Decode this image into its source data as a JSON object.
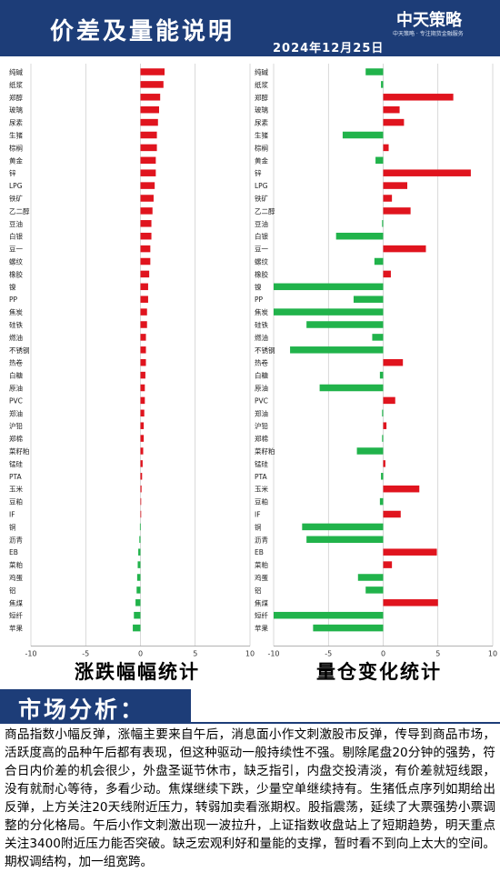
{
  "header": {
    "title": "价差及量能说明",
    "date": "2024年12月25日",
    "logo_text": "中天策略",
    "logo_slogan": "中天策略 · 专注期货金融服务"
  },
  "colors": {
    "header_bg": "#1d3d78",
    "positive": "#e0141e",
    "negative": "#21b34b",
    "grid": "#bfbfbf"
  },
  "chart_data": [
    {
      "type": "bar",
      "orientation": "horizontal",
      "title": "涨跌幅幅统计",
      "xlim": [
        -10,
        10
      ],
      "xticks": [
        -10,
        -5,
        0,
        5,
        10
      ],
      "categories": [
        "纯碱",
        "纸浆",
        "郑醇",
        "玻璃",
        "尿素",
        "生猪",
        "棕榈",
        "黄金",
        "锌",
        "LPG",
        "铁矿",
        "乙二醇",
        "豆油",
        "白银",
        "豆一",
        "螺纹",
        "橡胶",
        "镍",
        "PP",
        "焦炭",
        "硅铁",
        "燃油",
        "不锈钢",
        "热卷",
        "白糖",
        "原油",
        "PVC",
        "郑油",
        "沪铅",
        "郑棉",
        "菜籽粕",
        "锰硅",
        "PTA",
        "玉米",
        "豆粕",
        "IF",
        "铜",
        "沥青",
        "EB",
        "菜粕",
        "鸡蛋",
        "铝",
        "焦煤",
        "短纤",
        "苹果"
      ],
      "values": [
        2.2,
        2.1,
        1.8,
        1.7,
        1.6,
        1.5,
        1.5,
        1.4,
        1.4,
        1.3,
        1.2,
        1.1,
        1.0,
        1.0,
        0.9,
        0.9,
        0.8,
        0.7,
        0.7,
        0.6,
        0.6,
        0.5,
        0.5,
        0.5,
        0.45,
        0.4,
        0.4,
        0.35,
        0.3,
        0.3,
        0.25,
        0.2,
        0.15,
        0.1,
        0.05,
        0.05,
        -0.05,
        -0.1,
        -0.2,
        -0.25,
        -0.3,
        -0.35,
        -0.45,
        -0.6,
        -0.7
      ]
    },
    {
      "type": "bar",
      "orientation": "horizontal",
      "title": "量仓变化统计",
      "xlim": [
        -10,
        10
      ],
      "xticks": [
        -10,
        -5,
        0,
        5,
        10
      ],
      "categories": [
        "纯碱",
        "纸浆",
        "郑醇",
        "玻璃",
        "尿素",
        "生猪",
        "棕榈",
        "黄金",
        "锌",
        "LPG",
        "铁矿",
        "乙二醇",
        "豆油",
        "白银",
        "豆一",
        "螺纹",
        "橡胶",
        "镍",
        "PP",
        "焦炭",
        "硅铁",
        "燃油",
        "不锈钢",
        "热卷",
        "白糖",
        "原油",
        "PVC",
        "郑油",
        "沪铅",
        "郑棉",
        "菜籽粕",
        "锰硅",
        "PTA",
        "玉米",
        "豆粕",
        "IF",
        "铜",
        "沥青",
        "EB",
        "菜粕",
        "鸡蛋",
        "铝",
        "焦煤",
        "短纤",
        "苹果"
      ],
      "values": [
        -1.6,
        -0.2,
        6.4,
        1.5,
        1.9,
        -3.7,
        0.5,
        -0.7,
        8.0,
        2.2,
        0.8,
        2.5,
        -0.1,
        -4.3,
        3.9,
        -0.8,
        0.7,
        -10.0,
        -2.7,
        -10.0,
        -7.0,
        -1.0,
        -8.5,
        1.8,
        -0.3,
        -5.8,
        1.1,
        -0.1,
        0.3,
        -0.1,
        -2.4,
        0.2,
        -0.2,
        3.3,
        -0.3,
        1.6,
        -7.4,
        -7.0,
        4.9,
        0.8,
        -2.3,
        -1.6,
        5.0,
        -10.0,
        -6.4
      ]
    }
  ],
  "section": {
    "title": "市场分析："
  },
  "analysis": "商品指数小幅反弹，涨幅主要来自午后，消息面小作文刺激股市反弹，传导到商品市场，活跃度高的品种午后都有表现，但这种驱动一般持续性不强。剔除尾盘20分钟的强势，符合日内价差的机会很少，外盘圣诞节休市，缺乏指引，内盘交投清淡，有价差就短线跟，没有就耐心等待，多看少动。焦煤继续下跌，少量空单继续持有。生猪低点序列如期给出反弹，上方关注20天线附近压力，转弱加卖看涨期权。股指震荡，延续了大票强势小票调整的分化格局。午后小作文刺激出现一波拉升，上证指数收盘站上了短期趋势，明天重点关注3400附近压力能否突破。缺乏宏观利好和量能的支撑，暂时看不到向上太大的空间。期权调结构，加一组宽跨。"
}
